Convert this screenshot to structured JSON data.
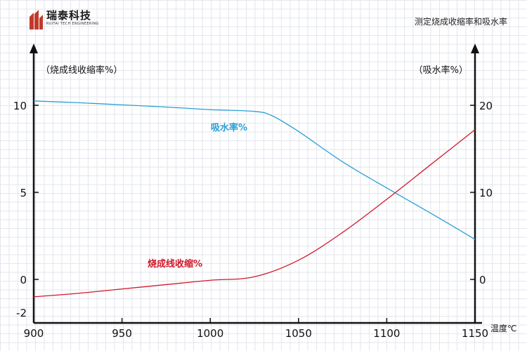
{
  "brand": {
    "name_cn": "瑞泰科技",
    "name_en": "RUITAI TECH ENGINEERING",
    "brand_color": "#c0392b"
  },
  "page_title": "测定烧成收缩率和吸水率",
  "chart_data": {
    "type": "line",
    "x_axis": {
      "label": "温度℃",
      "range": [
        900,
        1150
      ],
      "ticks": [
        900,
        950,
        1000,
        1050,
        1100,
        1150
      ]
    },
    "y_left": {
      "label": "（烧成线收缩率%）",
      "range": [
        -2,
        12.5
      ],
      "tick_labels": [
        "10",
        "5",
        "0",
        "-2"
      ],
      "tick_values": [
        10,
        5,
        0,
        -2
      ]
    },
    "y_right": {
      "label": "（吸水率%）",
      "range": [
        -4,
        25
      ],
      "tick_labels": [
        "20",
        "10",
        "0"
      ],
      "tick_values": [
        20,
        10,
        0
      ]
    },
    "grid": true,
    "series": [
      {
        "name": "吸水率%",
        "axis": "right",
        "color": "#2a9fd6",
        "x": [
          900,
          925,
          950,
          975,
          1000,
          1025,
          1035,
          1050,
          1075,
          1100,
          1125,
          1150
        ],
        "values": [
          20.5,
          20.3,
          20.05,
          19.8,
          19.5,
          19.3,
          18.8,
          17.0,
          13.5,
          10.5,
          7.6,
          4.6
        ]
      },
      {
        "name": "烧成线收缩%",
        "axis": "left",
        "color": "#d0192b",
        "x": [
          900,
          925,
          950,
          975,
          1000,
          1025,
          1050,
          1075,
          1100,
          1125,
          1150
        ],
        "values": [
          -1.0,
          -0.8,
          -0.55,
          -0.3,
          -0.05,
          0.15,
          1.1,
          2.7,
          4.6,
          6.6,
          8.6
        ]
      }
    ]
  }
}
